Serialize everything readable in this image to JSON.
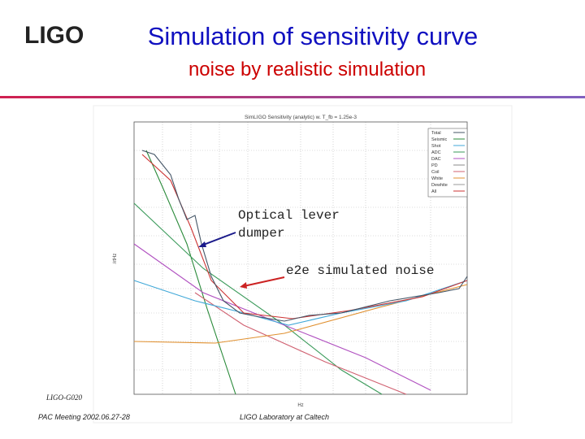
{
  "header": {
    "logo": "LIGO",
    "title": "Simulation of sensitivity curve",
    "subtitle": "noise by realistic simulation"
  },
  "figure": {
    "title": "SimLIGO Sensitivity (analytic) w. T_fb = 1.25e-3",
    "legend": [
      "Total",
      "Seismic",
      "Shot",
      "ADC",
      "DAC",
      "PD",
      "Coil",
      "White",
      "Dewhite",
      "All"
    ],
    "x_label": "Hz",
    "y_label": "/rtHz"
  },
  "annotations": {
    "optical_lever": [
      "Optical lever",
      "dumper"
    ],
    "e2e": "e2e simulated noise"
  },
  "footer": {
    "doc_id": "LIGO-G020",
    "meeting": "PAC Meeting 2002.06.27-28",
    "lab": "LIGO Laboratory at Caltech"
  }
}
